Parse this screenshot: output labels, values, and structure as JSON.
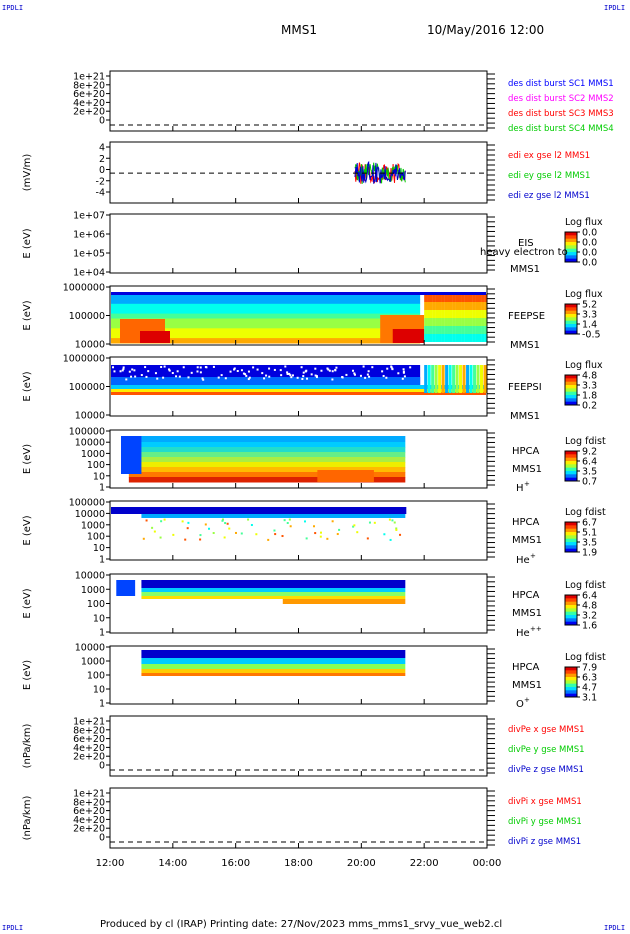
{
  "header": {
    "title": "MMS1",
    "date": "10/May/2016 12:00"
  },
  "corners": {
    "tl": "IPDLI",
    "tr": "IPDLI",
    "bl": "IPDLI",
    "br": "IPDLI"
  },
  "footer": "Produced by cl (IRAP)   Printing date: 27/Nov/2023   mms_mms1_srvy_vue_web2.cl",
  "colors": {
    "c1": "#0000ff",
    "c2": "#ff00ff",
    "c3": "#ff0000",
    "c4": "#00cc00",
    "red": "#ff0000",
    "green": "#00cc00",
    "blue": "#0000cc"
  },
  "chart_data": {
    "type": "multi-panel",
    "x_ticks": [
      "12:00",
      "14:00",
      "16:00",
      "18:00",
      "20:00",
      "22:00",
      "00:00"
    ],
    "panels": [
      {
        "id": "des",
        "type": "line",
        "ylabel": "",
        "yticks": [
          "1e+21",
          "8e+20",
          "6e+20",
          "4e+20",
          "2e+20",
          "0"
        ],
        "legend": [
          {
            "text": "des dist burst SC1 MMS1",
            "color": "#0000ff"
          },
          {
            "text": "des dist burst SC2 MMS2",
            "color": "#ff00ff"
          },
          {
            "text": "des dist burst SC3 MMS3",
            "color": "#ff0000"
          },
          {
            "text": "des dist burst SC4 MMS4",
            "color": "#00cc00"
          }
        ]
      },
      {
        "id": "edi",
        "type": "line",
        "ylabel": "(mV/m)",
        "yticks": [
          "4",
          "2",
          "0",
          "-2",
          "-4"
        ],
        "legend": [
          {
            "text": "edi ex gse l2 MMS1",
            "color": "#ff0000"
          },
          {
            "text": "edi ey gse l2 MMS1",
            "color": "#00cc00"
          },
          {
            "text": "edi ez gse l2 MMS1",
            "color": "#0000cc"
          }
        ]
      },
      {
        "id": "eis",
        "type": "heatmap",
        "ylabel": "E (eV)",
        "yticks": [
          "1e+07",
          "1e+06",
          "1e+05",
          "1e+04"
        ],
        "labels": [
          "EIS",
          "heavy electron to",
          "MMS1"
        ],
        "cbar_title": "Log flux",
        "cbar_ticks": [
          "0.0",
          "0.0",
          "0.0",
          "0.0"
        ]
      },
      {
        "id": "feepse",
        "type": "heatmap",
        "ylabel": "E (eV)",
        "yticks": [
          "1000000",
          "100000",
          "10000"
        ],
        "labels": [
          "FEEPSE",
          "MMS1"
        ],
        "cbar_title": "Log flux",
        "cbar_ticks": [
          "5.2",
          "3.3",
          "1.4",
          "-0.5"
        ]
      },
      {
        "id": "feepsi",
        "type": "heatmap",
        "ylabel": "E (eV)",
        "yticks": [
          "1000000",
          "100000",
          "10000"
        ],
        "labels": [
          "FEEPSI",
          "MMS1"
        ],
        "cbar_title": "Log flux",
        "cbar_ticks": [
          "4.8",
          "3.3",
          "1.8",
          "0.2"
        ]
      },
      {
        "id": "hpca-h",
        "type": "heatmap",
        "ylabel": "E (eV)",
        "yticks": [
          "100000",
          "10000",
          "1000",
          "100",
          "10",
          "1"
        ],
        "labels": [
          "HPCA",
          "MMS1"
        ],
        "species": "H",
        "species_sup": "+",
        "cbar_title": "Log fdist",
        "cbar_ticks": [
          "9.2",
          "6.4",
          "3.5",
          "0.7"
        ]
      },
      {
        "id": "hpca-he",
        "type": "heatmap",
        "ylabel": "E (eV)",
        "yticks": [
          "100000",
          "10000",
          "1000",
          "100",
          "10",
          "1"
        ],
        "labels": [
          "HPCA",
          "MMS1"
        ],
        "species": "He",
        "species_sup": "+",
        "cbar_title": "Log fdist",
        "cbar_ticks": [
          "6.7",
          "5.1",
          "3.5",
          "1.9"
        ]
      },
      {
        "id": "hpca-hepp",
        "type": "heatmap",
        "ylabel": "E (eV)",
        "yticks": [
          "10000",
          "1000",
          "100",
          "10",
          "1"
        ],
        "labels": [
          "HPCA",
          "MMS1"
        ],
        "species": "He",
        "species_sup": "++",
        "cbar_title": "Log fdist",
        "cbar_ticks": [
          "6.4",
          "4.8",
          "3.2",
          "1.6"
        ]
      },
      {
        "id": "hpca-o",
        "type": "heatmap",
        "ylabel": "E (eV)",
        "yticks": [
          "10000",
          "1000",
          "100",
          "10",
          "1"
        ],
        "labels": [
          "HPCA",
          "MMS1"
        ],
        "species": "O",
        "species_sup": "+",
        "cbar_title": "Log fdist",
        "cbar_ticks": [
          "7.9",
          "6.3",
          "4.7",
          "3.1"
        ]
      },
      {
        "id": "divpe",
        "type": "line",
        "ylabel": "(nPa/km)",
        "yticks": [
          "1e+21",
          "8e+20",
          "6e+20",
          "4e+20",
          "2e+20",
          "0"
        ],
        "legend": [
          {
            "text": "divPe x gse MMS1",
            "color": "#ff0000"
          },
          {
            "text": "divPe y gse MMS1",
            "color": "#00cc00"
          },
          {
            "text": "divPe z gse MMS1",
            "color": "#0000cc"
          }
        ]
      },
      {
        "id": "divpi",
        "type": "line",
        "ylabel": "(nPa/km)",
        "yticks": [
          "1e+21",
          "8e+20",
          "6e+20",
          "4e+20",
          "2e+20",
          "0"
        ],
        "legend": [
          {
            "text": "divPi x gse MMS1",
            "color": "#ff0000"
          },
          {
            "text": "divPi y gse MMS1",
            "color": "#00cc00"
          },
          {
            "text": "divPi z gse MMS1",
            "color": "#0000cc"
          }
        ]
      }
    ]
  }
}
